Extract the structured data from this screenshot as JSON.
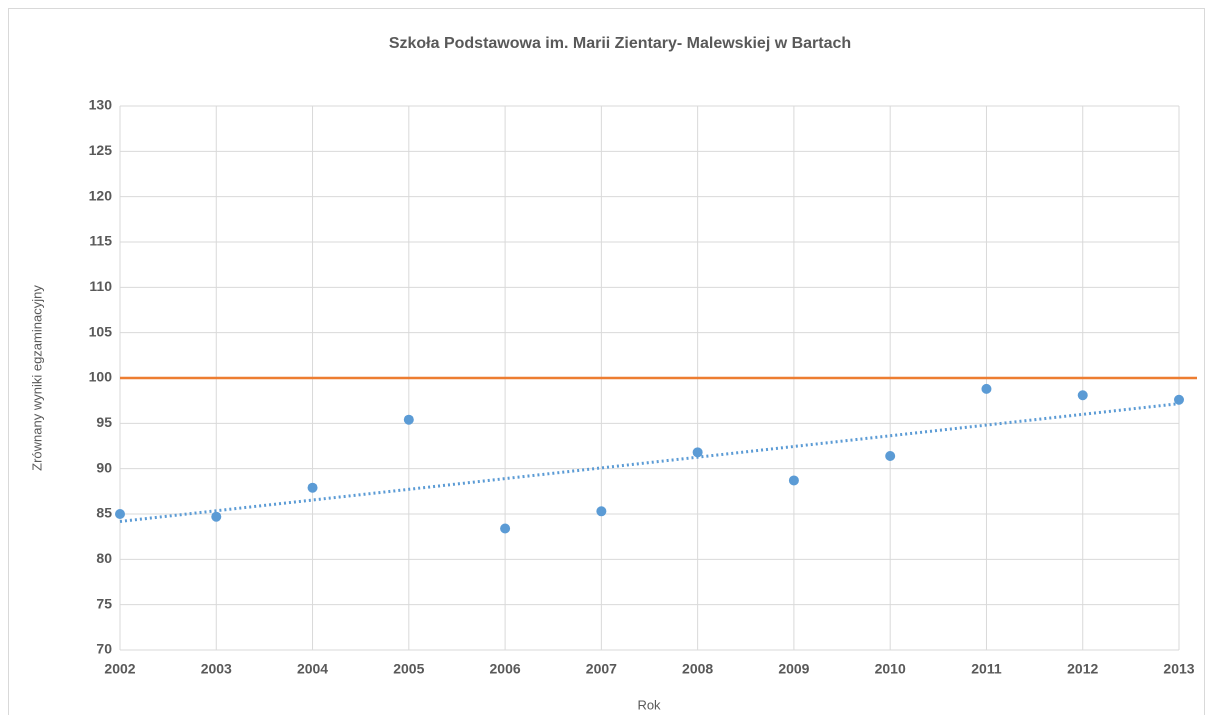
{
  "chart_data": {
    "type": "scatter",
    "title": "Szkoła Podstawowa im. Marii Zientary- Malewskiej w Bartach",
    "x_label": "Rok",
    "y_label": "Zrównany wyniki egzaminacyjny",
    "x": [
      2002,
      2003,
      2004,
      2005,
      2006,
      2007,
      2008,
      2009,
      2010,
      2011,
      2012,
      2013
    ],
    "series": [
      {
        "color": "#5b9bd5",
        "values": [
          85.0,
          84.7,
          87.9,
          95.4,
          83.4,
          85.3,
          91.8,
          88.7,
          91.4,
          98.8,
          98.1,
          97.6
        ],
        "trendline": "linear"
      }
    ],
    "hline": {
      "value": 100,
      "color": "#ed7d31"
    },
    "xlim": [
      2002,
      2013
    ],
    "xticks": [
      2002,
      2003,
      2004,
      2005,
      2006,
      2007,
      2008,
      2009,
      2010,
      2011,
      2012,
      2013
    ],
    "ylim": [
      70,
      130
    ],
    "yticks": [
      70,
      75,
      80,
      85,
      90,
      95,
      100,
      105,
      110,
      115,
      120,
      125,
      130
    ],
    "grid": true
  }
}
